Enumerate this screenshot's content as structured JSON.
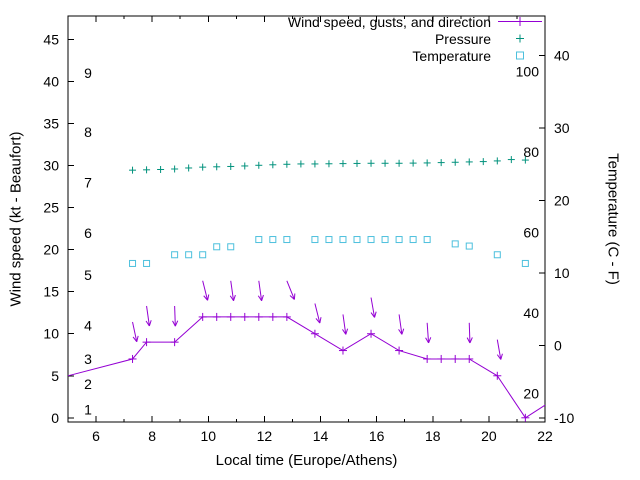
{
  "chart_data": {
    "type": "line",
    "xlabel": "Local time (Europe/Athens)",
    "ylabel_left": "Wind speed (kt - Beaufort)",
    "ylabel_right": "Temperature (C - F)",
    "x_range": [
      5,
      22
    ],
    "x_ticks": [
      6,
      8,
      10,
      12,
      14,
      16,
      18,
      20,
      22
    ],
    "y_left_range": [
      -0.5,
      47.8
    ],
    "y_left_ticks": [
      0,
      5,
      10,
      15,
      20,
      25,
      30,
      35,
      40,
      45
    ],
    "y_right_range": [
      -10.58,
      45.45
    ],
    "y_right_ticks": [
      -10,
      0,
      10,
      20,
      30,
      40
    ],
    "beaufort_scale": [
      {
        "b": "1",
        "kt": 1
      },
      {
        "b": "2",
        "kt": 4
      },
      {
        "b": "3",
        "kt": 7
      },
      {
        "b": "4",
        "kt": 11
      },
      {
        "b": "5",
        "kt": 17
      },
      {
        "b": "6",
        "kt": 22
      },
      {
        "b": "7",
        "kt": 28
      },
      {
        "b": "8",
        "kt": 34
      },
      {
        "b": "9",
        "kt": 41
      }
    ],
    "fahrenheit_scale": [
      {
        "f": "20"
      },
      {
        "f": "40"
      },
      {
        "f": "60"
      },
      {
        "f": "80"
      },
      {
        "f": "100"
      }
    ],
    "legend": [
      {
        "label": "Wind speed, gusts, and direction",
        "marker": "line-plus",
        "color": "#9400d3"
      },
      {
        "label": "Pressure",
        "marker": "plus",
        "color": "#00917c"
      },
      {
        "label": "Temperature",
        "marker": "open-square",
        "color": "#4cc0dd"
      }
    ],
    "grid": false,
    "series": {
      "wind_speed": {
        "units": "kt",
        "points": [
          [
            5.0,
            5.0,
            0
          ],
          [
            7.3,
            7.0,
            1
          ],
          [
            7.8,
            9.0,
            1
          ],
          [
            8.8,
            9.0,
            1
          ],
          [
            9.8,
            12.0,
            1
          ],
          [
            10.3,
            12.0,
            1
          ],
          [
            10.8,
            12.0,
            1
          ],
          [
            11.3,
            12.0,
            1
          ],
          [
            11.8,
            12.0,
            1
          ],
          [
            12.3,
            12.0,
            1
          ],
          [
            12.8,
            12.0,
            1
          ],
          [
            13.8,
            10.0,
            1
          ],
          [
            14.8,
            8.0,
            1
          ],
          [
            15.8,
            10.0,
            1
          ],
          [
            16.8,
            8.0,
            1
          ],
          [
            17.8,
            7.0,
            1
          ],
          [
            18.3,
            7.0,
            1
          ],
          [
            18.8,
            7.0,
            1
          ],
          [
            19.3,
            7.0,
            1
          ],
          [
            20.3,
            5.0,
            1
          ],
          [
            21.3,
            0.0,
            1
          ],
          [
            22.0,
            1.5,
            0
          ]
        ]
      },
      "wind_gusts": {
        "units": "kt, arrow tilt deg from vertical",
        "arrows": [
          [
            7.3,
            11.4,
            12
          ],
          [
            7.8,
            13.3,
            8
          ],
          [
            8.8,
            13.3,
            2
          ],
          [
            9.8,
            16.3,
            14
          ],
          [
            10.8,
            16.3,
            8
          ],
          [
            11.8,
            16.3,
            8
          ],
          [
            12.8,
            16.3,
            22
          ],
          [
            13.8,
            13.6,
            14
          ],
          [
            14.8,
            12.3,
            8
          ],
          [
            15.8,
            14.3,
            10
          ],
          [
            16.8,
            12.3,
            8
          ],
          [
            17.8,
            11.3,
            4
          ],
          [
            19.3,
            11.3,
            2
          ],
          [
            20.3,
            9.3,
            10
          ]
        ],
        "arrow_length_kt": 2.4
      },
      "pressure": {
        "units": "inHg (read on left axis numbers)",
        "x": [
          7.3,
          7.8,
          8.3,
          8.8,
          9.3,
          9.8,
          10.3,
          10.8,
          11.3,
          11.8,
          12.3,
          12.8,
          13.3,
          13.8,
          14.3,
          14.8,
          15.3,
          15.8,
          16.3,
          16.8,
          17.3,
          17.8,
          18.3,
          18.8,
          19.3,
          19.8,
          20.3,
          20.8,
          21.3
        ],
        "inhg": [
          29.46,
          29.5,
          29.54,
          29.6,
          29.72,
          29.82,
          29.86,
          29.9,
          29.96,
          30.04,
          30.1,
          30.16,
          30.2,
          30.2,
          30.22,
          30.24,
          30.26,
          30.28,
          30.28,
          30.28,
          30.3,
          30.32,
          30.36,
          30.4,
          30.44,
          30.48,
          30.56,
          30.72,
          30.66
        ]
      },
      "temperature": {
        "units": "C",
        "x": [
          7.3,
          7.8,
          8.8,
          9.3,
          9.8,
          10.3,
          10.8,
          11.8,
          12.3,
          12.8,
          13.8,
          14.3,
          14.8,
          15.3,
          15.8,
          16.3,
          16.8,
          17.3,
          17.8,
          18.8,
          19.3,
          20.3,
          21.3
        ],
        "c": [
          11.3,
          11.3,
          12.5,
          12.5,
          12.5,
          13.6,
          13.6,
          14.6,
          14.6,
          14.6,
          14.6,
          14.6,
          14.6,
          14.6,
          14.6,
          14.6,
          14.6,
          14.6,
          14.6,
          14.0,
          13.7,
          12.5,
          11.3
        ]
      }
    }
  }
}
